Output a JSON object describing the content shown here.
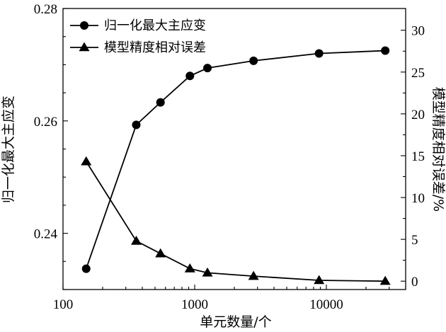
{
  "chart_data": {
    "type": "line",
    "xlabel": "单元数量/个",
    "ylabel_left": "归一化最大主应变",
    "ylabel_right": "模型精度相对误差/%",
    "x_scale": "log",
    "xlim": [
      100,
      40000
    ],
    "ylim_left": [
      0.23,
      0.28
    ],
    "ylim_right": [
      -1.0,
      32.6
    ],
    "x_ticks": [
      {
        "value": 100,
        "label": "100"
      },
      {
        "value": 1000,
        "label": "1000"
      },
      {
        "value": 10000,
        "label": "10000"
      }
    ],
    "y_left_ticks": [
      {
        "value": 0.24,
        "label": "0.24"
      },
      {
        "value": 0.26,
        "label": "0.26"
      },
      {
        "value": 0.28,
        "label": "0.28"
      }
    ],
    "y_right_ticks": [
      {
        "value": 0,
        "label": "0"
      },
      {
        "value": 5,
        "label": "5"
      },
      {
        "value": 10,
        "label": "10"
      },
      {
        "value": 15,
        "label": "15"
      },
      {
        "value": 20,
        "label": "20"
      },
      {
        "value": 25,
        "label": "25"
      },
      {
        "value": 30,
        "label": "30"
      }
    ],
    "legend_position": "top-left",
    "grid": false,
    "series": [
      {
        "name": "归一化最大主应变",
        "axis": "left",
        "marker": "circle",
        "color": "#000000",
        "x": [
          150,
          360,
          550,
          920,
          1250,
          2800,
          8800,
          28000
        ],
        "y": [
          0.2337,
          0.2593,
          0.2633,
          0.268,
          0.2694,
          0.2707,
          0.272,
          0.2725
        ]
      },
      {
        "name": "模型精度相对误差",
        "axis": "right",
        "marker": "triangle",
        "color": "#000000",
        "x": [
          150,
          360,
          550,
          920,
          1250,
          2800,
          8800,
          28000
        ],
        "y": [
          14.3,
          4.8,
          3.3,
          1.5,
          1.0,
          0.6,
          0.1,
          0.0
        ]
      }
    ]
  }
}
